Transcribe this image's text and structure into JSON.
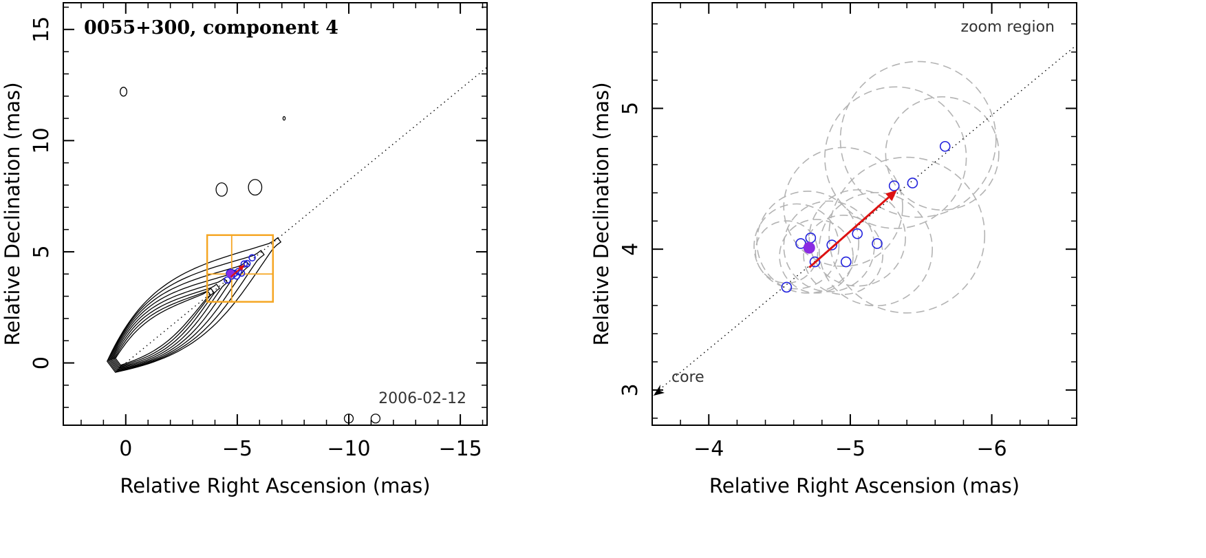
{
  "colors": {
    "axis": "#000000",
    "contour": "#000000",
    "marker": "#2222dd",
    "marker_filled": "#8a2be2",
    "vector": "#dd1111",
    "zoom_box": "#f5a623",
    "circle": "#b3b3b3",
    "path": "#000000"
  },
  "chart_data": [
    {
      "type": "scatter",
      "panel": "left",
      "title": "0055+300, component 4",
      "date": "2006-02-12",
      "xlabel": "Relative Right Ascension (mas)",
      "ylabel": "Relative Declination (mas)",
      "xlim": [
        2.8,
        -16.2
      ],
      "ylim": [
        -2.8,
        16.2
      ],
      "x_ticks": [
        {
          "value": 0,
          "label": "0"
        },
        {
          "value": -5,
          "label": "−5"
        },
        {
          "value": -10,
          "label": "−10"
        },
        {
          "value": -15,
          "label": "−15"
        }
      ],
      "y_ticks": [
        {
          "value": 0,
          "label": "0"
        },
        {
          "value": 5,
          "label": "5"
        },
        {
          "value": 10,
          "label": "10"
        },
        {
          "value": 15,
          "label": "15"
        }
      ],
      "x_minor_step": 1,
      "y_minor_step": 1,
      "contours": {
        "levels": 8,
        "center": [
          0,
          0.3
        ],
        "features": [
          {
            "x": -4.3,
            "y": 7.8,
            "rx": 0.25,
            "ry": 0.3
          },
          {
            "x": -5.8,
            "y": 7.9,
            "rx": 0.3,
            "ry": 0.35
          },
          {
            "x": 0.1,
            "y": 12.2,
            "rx": 0.15,
            "ry": 0.2
          },
          {
            "x": -10,
            "y": -2.5,
            "rx": 0.2,
            "ry": 0.2
          },
          {
            "x": -11.2,
            "y": -2.5,
            "rx": 0.2,
            "ry": 0.2
          },
          {
            "x": -7.1,
            "y": 11.0,
            "rx": 0.05,
            "ry": 0.08
          }
        ]
      },
      "path_line": {
        "from": [
          0,
          0
        ],
        "to": [
          -16.2,
          13.3
        ]
      },
      "zoom_box": {
        "x": [
          -3.65,
          -6.6
        ],
        "y": [
          2.75,
          5.75
        ],
        "cross": [
          -4.75,
          4.0
        ]
      },
      "points": [
        {
          "x": -4.55,
          "y": 3.73
        },
        {
          "x": -4.65,
          "y": 4.04
        },
        {
          "x": -4.72,
          "y": 4.08
        },
        {
          "x": -4.75,
          "y": 3.91
        },
        {
          "x": -4.87,
          "y": 4.03
        },
        {
          "x": -4.97,
          "y": 3.91
        },
        {
          "x": -5.05,
          "y": 4.11
        },
        {
          "x": -5.19,
          "y": 4.04
        },
        {
          "x": -5.31,
          "y": 4.45
        },
        {
          "x": -5.44,
          "y": 4.47
        },
        {
          "x": -5.67,
          "y": 4.73
        }
      ],
      "filled_point": {
        "x": -4.71,
        "y": 4.01
      },
      "vector": {
        "from": [
          -4.71,
          3.87
        ],
        "to": [
          -5.33,
          4.42
        ]
      }
    },
    {
      "type": "scatter",
      "panel": "right",
      "title": "zoom region",
      "xlabel": "Relative Right Ascension (mas)",
      "ylabel": "Relative Declination (mas)",
      "xlim": [
        -3.6,
        -6.6
      ],
      "ylim": [
        2.75,
        5.75
      ],
      "x_ticks": [
        {
          "value": -4,
          "label": "−4"
        },
        {
          "value": -5,
          "label": "−5"
        },
        {
          "value": -6,
          "label": "−6"
        }
      ],
      "y_ticks": [
        {
          "value": 3,
          "label": "3"
        },
        {
          "value": 4,
          "label": "4"
        },
        {
          "value": 5,
          "label": "5"
        }
      ],
      "x_minor_step": 0.2,
      "y_minor_step": 0.2,
      "core_label": "core",
      "core_arrow_at": [
        -3.6,
        2.96
      ],
      "path_line": {
        "from": [
          -3.6,
          2.96
        ],
        "to": [
          -6.6,
          5.45
        ]
      },
      "points": [
        {
          "x": -4.55,
          "y": 3.73
        },
        {
          "x": -4.65,
          "y": 4.04
        },
        {
          "x": -4.72,
          "y": 4.08
        },
        {
          "x": -4.75,
          "y": 3.91
        },
        {
          "x": -4.87,
          "y": 4.03
        },
        {
          "x": -4.97,
          "y": 3.91
        },
        {
          "x": -5.05,
          "y": 4.11
        },
        {
          "x": -5.19,
          "y": 4.04
        },
        {
          "x": -5.31,
          "y": 4.45
        },
        {
          "x": -5.44,
          "y": 4.47
        },
        {
          "x": -5.67,
          "y": 4.73
        }
      ],
      "filled_point": {
        "x": -4.71,
        "y": 4.01
      },
      "vector": {
        "from": [
          -4.71,
          3.87
        ],
        "to": [
          -5.33,
          4.42
        ]
      },
      "error_circles": [
        {
          "x": -4.55,
          "y": 3.98,
          "r": 0.22
        },
        {
          "x": -4.62,
          "y": 4.02,
          "r": 0.3
        },
        {
          "x": -4.7,
          "y": 4.05,
          "r": 0.36
        },
        {
          "x": -4.76,
          "y": 3.95,
          "r": 0.26
        },
        {
          "x": -4.85,
          "y": 4.02,
          "r": 0.32
        },
        {
          "x": -4.95,
          "y": 3.96,
          "r": 0.28
        },
        {
          "x": -5.05,
          "y": 4.08,
          "r": 0.34
        },
        {
          "x": -5.18,
          "y": 4.0,
          "r": 0.4
        },
        {
          "x": -5.32,
          "y": 4.65,
          "r": 0.5
        },
        {
          "x": -5.48,
          "y": 4.78,
          "r": 0.55
        },
        {
          "x": -5.65,
          "y": 4.68,
          "r": 0.4
        },
        {
          "x": -5.4,
          "y": 4.1,
          "r": 0.55
        },
        {
          "x": -4.95,
          "y": 4.3,
          "r": 0.42
        }
      ]
    }
  ]
}
